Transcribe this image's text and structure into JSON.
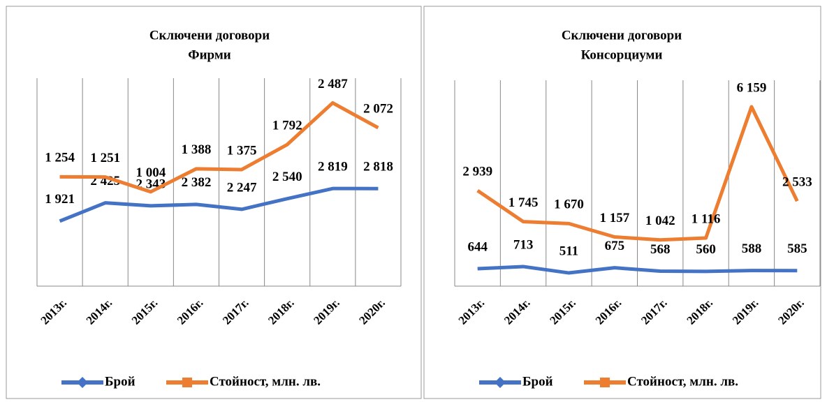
{
  "chart_data": [
    {
      "type": "line",
      "title": "Сключени договори",
      "subtitle": "Фирми",
      "categories": [
        "2013г.",
        "2014г.",
        "2015г.",
        "2016г.",
        "2017г.",
        "2018г.",
        "2019г.",
        "2020г."
      ],
      "series": [
        {
          "name": "Брой",
          "color": "#4472c4",
          "values": [
            1921,
            2425,
            2343,
            2382,
            2247,
            2540,
            2819,
            2818
          ],
          "value_labels": [
            "1 921",
            "2 425",
            "2 343",
            "2 382",
            "2 247",
            "2 540",
            "2 819",
            "2 818"
          ]
        },
        {
          "name": "Стойност, млн. лв.",
          "color": "#ed7d31",
          "axis": "y2",
          "values": [
            1254,
            1251,
            1004,
            1388,
            1375,
            1792,
            2487,
            2072
          ],
          "value_labels": [
            "1 254",
            "1 251",
            "1 004",
            "1 388",
            "1 375",
            "1 792",
            "2 487",
            "2 072"
          ]
        }
      ],
      "ylim": [
        130,
        5860
      ],
      "y2lim": [
        -570,
        2900
      ],
      "grid": true
    },
    {
      "type": "line",
      "title": "Сключени договори",
      "subtitle": "Консорциуми",
      "categories": [
        "2013г.",
        "2014г.",
        "2015г.",
        "2016г.",
        "2017г.",
        "2018г.",
        "2019г.",
        "2020г."
      ],
      "series": [
        {
          "name": "Брой",
          "color": "#4472c4",
          "values": [
            644,
            713,
            511,
            675,
            568,
            560,
            588,
            585
          ]
        },
        {
          "name": "Стойност, млн. лв.",
          "color": "#ed7d31",
          "axis": "y2",
          "values": [
            2939,
            1745,
            1670,
            1157,
            1042,
            1116,
            6159,
            2533
          ],
          "value_labels": [
            "2 939",
            "1 745",
            "1 670",
            "1 157",
            "1 042",
            "1 116",
            "6 159",
            "2 533"
          ]
        }
      ],
      "ylim": [
        90,
        6640
      ],
      "y2lim": [
        -734,
        7178
      ],
      "grid": true
    }
  ]
}
